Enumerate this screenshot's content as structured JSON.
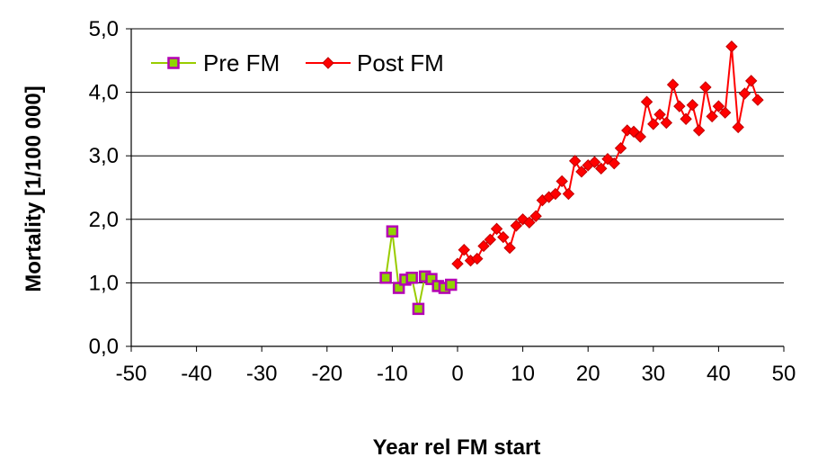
{
  "chart_data": {
    "type": "line",
    "title": "",
    "xlabel": "Year rel FM start",
    "ylabel": "Mortality [1/100 000]",
    "xlim": [
      -50,
      50
    ],
    "ylim": [
      0,
      5
    ],
    "x_ticks": [
      -50,
      -40,
      -30,
      -20,
      -10,
      0,
      10,
      20,
      30,
      40,
      50
    ],
    "y_ticks": [
      0,
      1,
      2,
      3,
      4,
      5
    ],
    "x_tick_labels": [
      "-50",
      "-40",
      "-30",
      "-20",
      "-10",
      "0",
      "10",
      "20",
      "30",
      "40",
      "50"
    ],
    "y_tick_labels": [
      "0,0",
      "1,0",
      "2,0",
      "3,0",
      "4,0",
      "5,0"
    ],
    "grid": "horizontal",
    "legend_position": "top-left",
    "series": [
      {
        "name": "Pre FM",
        "line_color": "#99cc00",
        "marker": "square",
        "marker_fill": "#8fd400",
        "marker_edge": "#b400b4",
        "x": [
          -11,
          -10,
          -9,
          -8,
          -7,
          -6,
          -5,
          -4,
          -3,
          -2,
          -1
        ],
        "y": [
          1.08,
          1.81,
          0.92,
          1.05,
          1.08,
          0.59,
          1.1,
          1.06,
          0.95,
          0.92,
          0.97
        ]
      },
      {
        "name": "Post FM",
        "line_color": "#ff0000",
        "marker": "diamond",
        "marker_fill": "#ff0000",
        "marker_edge": "#c00000",
        "x": [
          0,
          1,
          2,
          3,
          4,
          5,
          6,
          7,
          8,
          9,
          10,
          11,
          12,
          13,
          14,
          15,
          16,
          17,
          18,
          19,
          20,
          21,
          22,
          23,
          24,
          25,
          26,
          27,
          28,
          29,
          30,
          31,
          32,
          33,
          34,
          35,
          36,
          37,
          38,
          39,
          40,
          41,
          42,
          43,
          44,
          45,
          46
        ],
        "y": [
          1.3,
          1.52,
          1.35,
          1.38,
          1.58,
          1.68,
          1.85,
          1.72,
          1.55,
          1.9,
          2.0,
          1.95,
          2.05,
          2.3,
          2.35,
          2.4,
          2.6,
          2.4,
          2.92,
          2.75,
          2.85,
          2.9,
          2.8,
          2.95,
          2.88,
          3.12,
          3.4,
          3.38,
          3.3,
          3.85,
          3.5,
          3.65,
          3.52,
          4.12,
          3.78,
          3.58,
          3.8,
          3.4,
          4.08,
          3.62,
          3.78,
          3.68,
          4.72,
          3.45,
          3.98,
          4.18,
          3.88
        ]
      }
    ]
  }
}
